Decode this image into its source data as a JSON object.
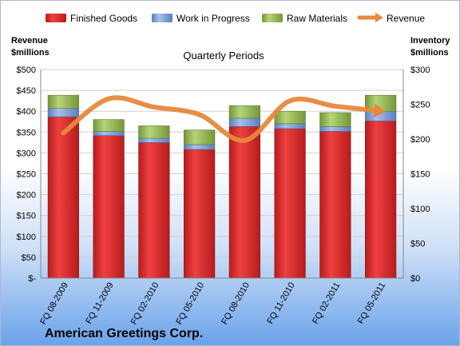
{
  "chart_data": {
    "type": "bar",
    "stacked": true,
    "title": "Quarterly Periods",
    "company": "American Greetings Corp.",
    "left_axis": {
      "title_line1": "Revenue",
      "title_line2": "$millions",
      "ylim": [
        0,
        500
      ],
      "ticks": [
        0,
        50,
        100,
        150,
        200,
        250,
        300,
        350,
        400,
        450,
        500
      ],
      "tick_labels": [
        "$-",
        "$50",
        "$100",
        "$150",
        "$200",
        "$250",
        "$300",
        "$350",
        "$400",
        "$450",
        "$500"
      ]
    },
    "right_axis": {
      "title_line1": "Inventory",
      "title_line2": "$millions",
      "ylim": [
        0,
        300
      ],
      "ticks": [
        0,
        50,
        100,
        150,
        200,
        250,
        300
      ],
      "tick_labels": [
        "$0",
        "$50",
        "$100",
        "$150",
        "$200",
        "$250",
        "$300"
      ]
    },
    "categories": [
      "FQ 08-2009",
      "FQ 11-2009",
      "FQ 02-2010",
      "FQ 05-2010",
      "FQ 08-2010",
      "FQ 11-2010",
      "FQ 02-2011",
      "FQ 05-2011"
    ],
    "series": [
      {
        "name": "Finished Goods",
        "axis": "right",
        "color": "#d42a2a",
        "values": [
          232,
          205,
          195,
          185,
          218,
          215,
          211,
          226
        ]
      },
      {
        "name": "Work in Progress",
        "axis": "right",
        "color": "#7e9fd3",
        "values": [
          12,
          6,
          6,
          7,
          12,
          7,
          7,
          14
        ]
      },
      {
        "name": "Raw Materials",
        "axis": "right",
        "color": "#9bbb59",
        "values": [
          19,
          17,
          18,
          21,
          18,
          18,
          20,
          23
        ]
      },
      {
        "name": "Revenue",
        "axis": "left",
        "type": "line",
        "color": "#e8883a",
        "values": [
          348,
          430,
          410,
          392,
          330,
          425,
          412,
          400
        ]
      }
    ],
    "legend_position": "top"
  }
}
